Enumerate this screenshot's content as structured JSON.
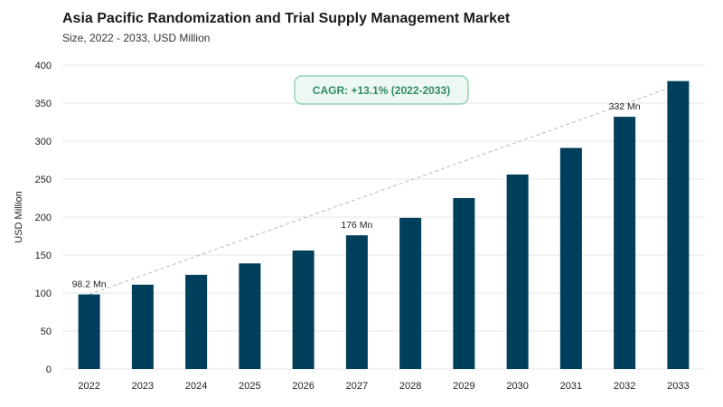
{
  "colors": {
    "bar": "#003f5c",
    "grid": "#e6e6e6",
    "trend": "#b8b8b8",
    "cagr_border": "#7fcaa6",
    "cagr_bg": "#eef8f3",
    "cagr_text": "#2e8b63"
  },
  "chart_data": {
    "type": "bar",
    "title": "Asia Pacific Randomization and Trial Supply Management Market",
    "subtitle": "Size, 2022 - 2033, USD Million",
    "xlabel": "",
    "ylabel": "USD Million",
    "ylim": [
      0,
      400
    ],
    "yticks": [
      0,
      50,
      100,
      150,
      200,
      250,
      300,
      350,
      400
    ],
    "grid": true,
    "categories": [
      "2022",
      "2023",
      "2024",
      "2025",
      "2026",
      "2027",
      "2028",
      "2029",
      "2030",
      "2031",
      "2032",
      "2033"
    ],
    "values": [
      98.2,
      111,
      124,
      139,
      156,
      176,
      199,
      225,
      256,
      291,
      332,
      379
    ],
    "data_labels": [
      {
        "index": 0,
        "text": "98.2 Mn"
      },
      {
        "index": 5,
        "text": "176 Mn"
      },
      {
        "index": 10,
        "text": "332 Mn"
      }
    ],
    "trend_line": {
      "from_index": 0,
      "to_index": 11
    },
    "annotation": "CAGR: +13.1% (2022-2033)"
  }
}
